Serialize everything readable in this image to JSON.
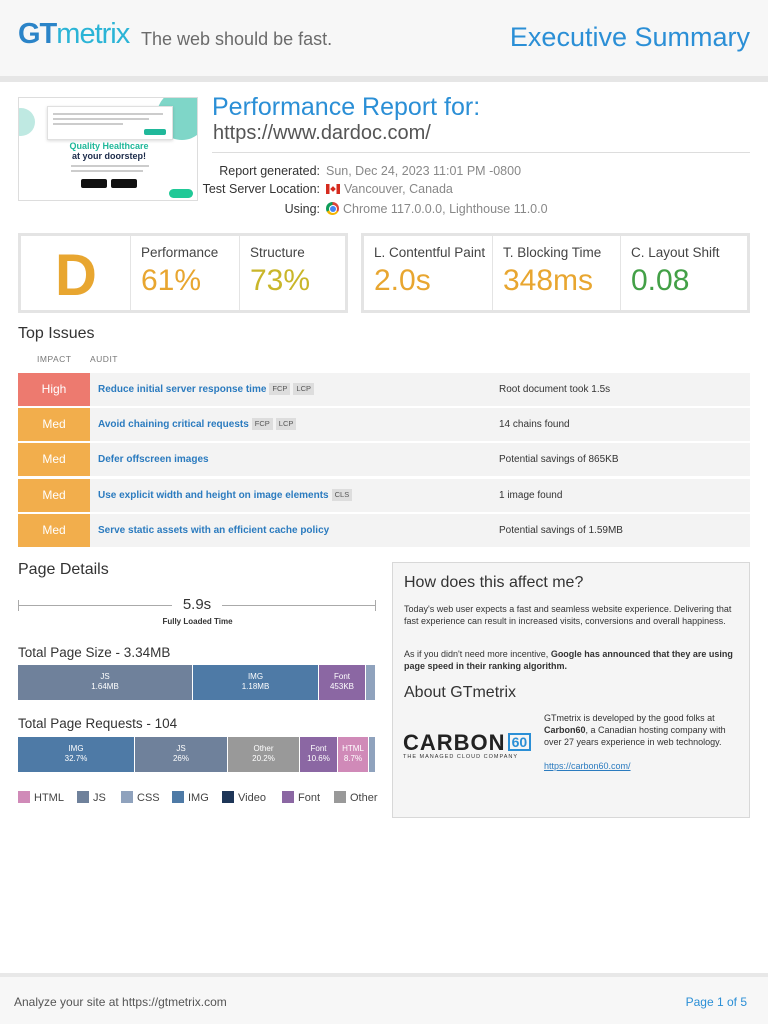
{
  "header": {
    "logo_gt": "GT",
    "logo_metrix": "metrix",
    "tagline": "The web should be fast.",
    "title": "Executive Summary"
  },
  "thumbnail": {
    "headline": "Quality Healthcare",
    "subheadline": "at your doorstep!"
  },
  "report": {
    "title": "Performance Report for:",
    "url": "https://www.dardoc.com/",
    "meta": [
      {
        "label": "Report generated:",
        "value": "Sun, Dec 24, 2023 11:01 PM -0800",
        "icon": ""
      },
      {
        "label": "Test Server Location:",
        "value": "Vancouver, Canada",
        "icon": "canada-flag-icon"
      },
      {
        "label": "Using:",
        "value": "Chrome 117.0.0.0, Lighthouse 11.0.0",
        "icon": "chrome-icon"
      }
    ]
  },
  "scores": {
    "grade": "D",
    "grade_color": "#e8a630",
    "performance": {
      "label": "Performance",
      "value": "61%",
      "color": "#e8a630"
    },
    "structure": {
      "label": "Structure",
      "value": "73%",
      "color": "#c9b62a"
    },
    "lcp": {
      "label": "L. Contentful Paint",
      "value": "2.0s",
      "color": "#e8a630"
    },
    "tbt": {
      "label": "T. Blocking Time",
      "value": "348ms",
      "color": "#e8a630"
    },
    "cls": {
      "label": "C. Layout Shift",
      "value": "0.08",
      "color": "#43a047"
    }
  },
  "top_issues": {
    "title": "Top Issues",
    "col_impact": "IMPACT",
    "col_audit": "AUDIT",
    "rows": [
      {
        "impact": "High",
        "color": "#ed7a6f",
        "audit": "Reduce initial server response time",
        "tags": [
          "FCP",
          "LCP"
        ],
        "finding": "Root document took 1.5s"
      },
      {
        "impact": "Med",
        "color": "#f2ae4c",
        "audit": "Avoid chaining critical requests",
        "tags": [
          "FCP",
          "LCP"
        ],
        "finding": "14 chains found"
      },
      {
        "impact": "Med",
        "color": "#f2ae4c",
        "audit": "Defer offscreen images",
        "tags": [],
        "finding": "Potential savings of 865KB"
      },
      {
        "impact": "Med",
        "color": "#f2ae4c",
        "audit": "Use explicit width and height on image elements",
        "tags": [
          "CLS"
        ],
        "finding": "1 image found"
      },
      {
        "impact": "Med",
        "color": "#f2ae4c",
        "audit": "Serve static assets with an efficient cache policy",
        "tags": [],
        "finding": "Potential savings of 1.59MB"
      }
    ]
  },
  "page_details": {
    "title": "Page Details",
    "fully_loaded_value": "5.9s",
    "fully_loaded_label": "Fully Loaded Time",
    "size_title": "Total Page Size - 3.34MB",
    "size_segments": [
      {
        "name": "JS",
        "value": "1.64MB",
        "fraction": 0.491,
        "color": "#6f819b"
      },
      {
        "name": "IMG",
        "value": "1.18MB",
        "fraction": 0.353,
        "color": "#4e7aa6"
      },
      {
        "name": "Font",
        "value": "453KB",
        "fraction": 0.132,
        "color": "#8b67a3"
      },
      {
        "name": "",
        "value": "",
        "fraction": 0.024,
        "color": "#8fa2bd"
      }
    ],
    "requests_title": "Total Page Requests - 104",
    "request_segments": [
      {
        "name": "IMG",
        "value": "32.7%",
        "fraction": 0.327,
        "color": "#4e7aa6"
      },
      {
        "name": "JS",
        "value": "26%",
        "fraction": 0.26,
        "color": "#6f819b"
      },
      {
        "name": "Other",
        "value": "20.2%",
        "fraction": 0.202,
        "color": "#999999"
      },
      {
        "name": "Font",
        "value": "10.6%",
        "fraction": 0.106,
        "color": "#8b67a3"
      },
      {
        "name": "HTML",
        "value": "8.7%",
        "fraction": 0.087,
        "color": "#d08ab8"
      },
      {
        "name": "",
        "value": "",
        "fraction": 0.018,
        "color": "#8fa2bd"
      }
    ],
    "legend": [
      {
        "name": "HTML",
        "color": "#d08ab8"
      },
      {
        "name": "JS",
        "color": "#6f819b"
      },
      {
        "name": "CSS",
        "color": "#8fa2bd"
      },
      {
        "name": "IMG",
        "color": "#4e7aa6"
      },
      {
        "name": "Video",
        "color": "#1d3557"
      },
      {
        "name": "Font",
        "color": "#8b67a3"
      },
      {
        "name": "Other",
        "color": "#999999"
      }
    ]
  },
  "info": {
    "affect_title": "How does this affect me?",
    "affect_p1": "Today's web user expects a fast and seamless website experience. Delivering that fast experience can result in increased visits, conversions and overall happiness.",
    "affect_p2_a": "As if you didn't need more incentive, ",
    "affect_p2_b": "Google has announced that they are using page speed in their ranking algorithm.",
    "about_title": "About GTmetrix",
    "carbon_word": "CARBON",
    "carbon_num": "60",
    "carbon_sub": "THE MANAGED CLOUD COMPANY",
    "carbon_text_a": "GTmetrix is developed by the good folks at ",
    "carbon_text_b": "Carbon60",
    "carbon_text_c": ", a Canadian hosting company with over 27 years experience in web technology.",
    "carbon_link": "https://carbon60.com/"
  },
  "footer": {
    "left": "Analyze your site at https://gtmetrix.com",
    "right": "Page 1 of 5"
  }
}
